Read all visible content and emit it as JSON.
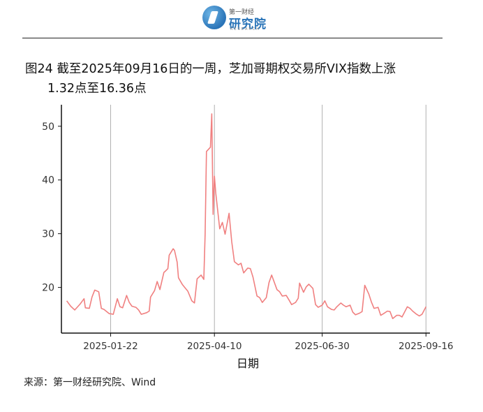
{
  "header": {
    "logo_small": "第一财经",
    "logo_big": "研究院",
    "logo_tiny": "RESEARCH"
  },
  "title": {
    "line1": "图24  截至2025年09月16日的一周，芝加哥期权交易所VIX指数上涨",
    "line2": "1.32点至16.36点"
  },
  "source": "来源：第一财经研究院、Wind",
  "chart_data": {
    "type": "line",
    "title": "",
    "xlabel": "日期",
    "ylabel": "",
    "x_range": [
      "2024-12-16",
      "2025-09-19"
    ],
    "ylim": [
      11.5,
      54
    ],
    "yticks": [
      20,
      30,
      40,
      50
    ],
    "xticks": [
      "2025-01-22",
      "2025-04-10",
      "2025-06-30",
      "2025-09-16"
    ],
    "line_color": "#f08080",
    "grid": "vertical lines at x ticks",
    "series": [
      {
        "x": [
          "2024-12-20",
          "2024-12-23",
          "2024-12-26",
          "2024-12-30",
          "2025-01-02",
          "2025-01-03",
          "2025-01-06",
          "2025-01-08",
          "2025-01-10",
          "2025-01-13",
          "2025-01-15",
          "2025-01-17",
          "2025-01-21",
          "2025-01-22",
          "2025-01-24",
          "2025-01-27",
          "2025-01-29",
          "2025-01-31",
          "2025-02-03",
          "2025-02-05",
          "2025-02-07",
          "2025-02-10",
          "2025-02-12",
          "2025-02-14",
          "2025-02-18",
          "2025-02-20",
          "2025-02-21",
          "2025-02-24",
          "2025-02-26",
          "2025-02-28",
          "2025-03-03",
          "2025-03-04",
          "2025-03-06",
          "2025-03-07",
          "2025-03-10",
          "2025-03-11",
          "2025-03-13",
          "2025-03-14",
          "2025-03-17",
          "2025-03-19",
          "2025-03-21",
          "2025-03-24",
          "2025-03-26",
          "2025-03-28",
          "2025-03-31",
          "2025-04-02",
          "2025-04-03",
          "2025-04-04",
          "2025-04-07",
          "2025-04-08",
          "2025-04-09",
          "2025-04-10",
          "2025-04-11",
          "2025-04-14",
          "2025-04-16",
          "2025-04-18",
          "2025-04-21",
          "2025-04-23",
          "2025-04-25",
          "2025-04-28",
          "2025-04-30",
          "2025-05-02",
          "2025-05-05",
          "2025-05-07",
          "2025-05-09",
          "2025-05-12",
          "2025-05-14",
          "2025-05-16",
          "2025-05-19",
          "2025-05-21",
          "2025-05-23",
          "2025-05-27",
          "2025-05-29",
          "2025-05-31",
          "2025-06-03",
          "2025-06-05",
          "2025-06-07",
          "2025-06-10",
          "2025-06-12",
          "2025-06-13",
          "2025-06-16",
          "2025-06-18",
          "2025-06-20",
          "2025-06-23",
          "2025-06-25",
          "2025-06-27",
          "2025-06-30",
          "2025-07-02",
          "2025-07-04",
          "2025-07-07",
          "2025-07-09",
          "2025-07-11",
          "2025-07-14",
          "2025-07-16",
          "2025-07-18",
          "2025-07-21",
          "2025-07-23",
          "2025-07-25",
          "2025-07-28",
          "2025-07-30",
          "2025-08-01",
          "2025-08-04",
          "2025-08-06",
          "2025-08-08",
          "2025-08-11",
          "2025-08-13",
          "2025-08-15",
          "2025-08-18",
          "2025-08-20",
          "2025-08-22",
          "2025-08-25",
          "2025-08-27",
          "2025-08-29",
          "2025-09-02",
          "2025-09-04",
          "2025-09-06",
          "2025-09-09",
          "2025-09-11",
          "2025-09-13",
          "2025-09-16"
        ],
        "y": [
          17.5,
          16.5,
          15.8,
          16.9,
          17.9,
          16.2,
          16.1,
          18.2,
          19.5,
          19.2,
          16.1,
          15.9,
          15.1,
          15.1,
          15.0,
          17.9,
          16.4,
          16.2,
          18.5,
          17.2,
          16.5,
          16.3,
          15.8,
          15.0,
          15.3,
          15.6,
          18.2,
          19.4,
          21.1,
          19.6,
          22.8,
          23.0,
          23.5,
          26.0,
          27.2,
          26.9,
          24.7,
          21.8,
          20.5,
          19.9,
          19.3,
          17.5,
          17.1,
          21.6,
          22.3,
          21.5,
          30.0,
          45.3,
          46.1,
          52.3,
          33.6,
          40.7,
          37.6,
          30.9,
          32.1,
          29.9,
          33.8,
          28.5,
          24.8,
          24.2,
          24.5,
          22.7,
          23.6,
          23.5,
          21.9,
          18.4,
          18.1,
          17.2,
          18.1,
          20.9,
          22.3,
          19.6,
          19.2,
          18.4,
          18.5,
          17.7,
          16.8,
          17.2,
          18.0,
          20.8,
          19.1,
          20.1,
          20.6,
          19.8,
          16.8,
          16.3,
          16.7,
          17.5,
          16.4,
          15.9,
          15.8,
          16.4,
          17.1,
          16.7,
          16.4,
          16.7,
          15.4,
          14.9,
          15.2,
          15.5,
          20.4,
          18.8,
          17.3,
          16.1,
          16.3,
          14.8,
          15.1,
          15.6,
          15.5,
          14.2,
          14.8,
          14.8,
          14.5,
          16.4,
          16.1,
          15.6,
          15.0,
          14.7,
          15.0,
          16.4
        ]
      }
    ]
  }
}
